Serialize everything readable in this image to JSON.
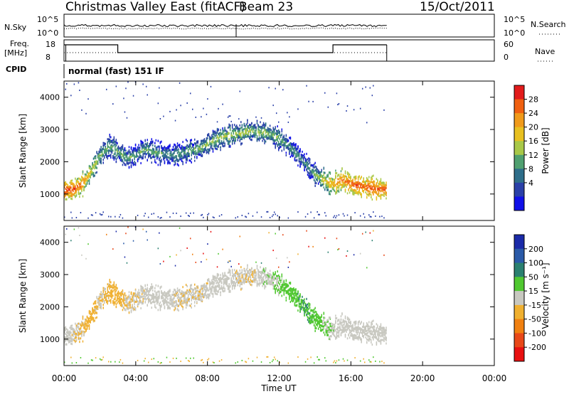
{
  "header": {
    "station": "Christmas Valley East (fitACF)",
    "beam": "Beam 23",
    "date": "15/Oct/2011"
  },
  "summary_labels": {
    "nsky": "N.Sky",
    "freq_line1": "Freq.",
    "freq_line2": "[MHz]",
    "cpid": "CPID",
    "nsearch": "N.Search",
    "nave": "Nave"
  },
  "summary_ticks": {
    "nsky_top": "10^5",
    "nsky_bottom": "10^0",
    "nsearch_top": "10^5",
    "nsearch_bottom": "10^0",
    "freq_top": "18",
    "freq_bottom": "8",
    "nave_top": "60",
    "nave_bottom": "0"
  },
  "mode_text": "normal (fast) 151 IF",
  "colorbars": {
    "power": {
      "label": "Power [dB]",
      "ticks": [
        "28",
        "24",
        "20",
        "16",
        "12",
        "8",
        "4"
      ],
      "colors": [
        "#e21b1b",
        "#f06010",
        "#f09a1a",
        "#e8c020",
        "#a8c848",
        "#50a070",
        "#2e6e8a",
        "#2a40a8",
        "#1010e8"
      ]
    },
    "velocity": {
      "label": "Velocity [m s⁻¹]",
      "ticks": [
        "200",
        "100",
        "50",
        "15",
        "-15",
        "-50",
        "-100",
        "-200"
      ],
      "colors": [
        "#1a2aa8",
        "#2a5aa8",
        "#2a8070",
        "#50c830",
        "#c8c8c0",
        "#f0b030",
        "#f08010",
        "#e84818",
        "#e81010"
      ]
    }
  },
  "axes": {
    "xlabel": "Time UT",
    "ylabel": "Slant Range [km]",
    "xticks": [
      "00:00",
      "04:00",
      "08:00",
      "12:00",
      "16:00",
      "20:00",
      "00:00"
    ],
    "yticks": [
      "1000",
      "2000",
      "3000",
      "4000"
    ]
  },
  "chart_data": [
    {
      "type": "heatmap",
      "panel": "power",
      "x_range_hours": [
        0,
        24
      ],
      "y_range_km": [
        180,
        4500
      ],
      "data_end_hour": 18.0,
      "color_scale_db": [
        0,
        32
      ],
      "echo_bands": [
        {
          "t": [
            0.0,
            0.5,
            1.0,
            1.5,
            2.0,
            2.5,
            3.0,
            3.5,
            4.0,
            4.5,
            5.0,
            5.5,
            6.0,
            6.5,
            7.0,
            7.5,
            8.0,
            8.5,
            9.0,
            9.5,
            10.0,
            10.5,
            11.0,
            11.5,
            12.0,
            12.5,
            13.0,
            13.5,
            14.0,
            14.5,
            15.0,
            15.5,
            16.0,
            16.5,
            17.0,
            17.5,
            18.0
          ],
          "range_km": [
            1100,
            1150,
            1300,
            1700,
            2200,
            2500,
            2300,
            2100,
            2200,
            2400,
            2300,
            2250,
            2200,
            2250,
            2350,
            2400,
            2550,
            2700,
            2800,
            2850,
            2900,
            2950,
            2900,
            2850,
            2700,
            2500,
            2200,
            1900,
            1600,
            1400,
            1300,
            1450,
            1300,
            1250,
            1200,
            1150,
            1150
          ],
          "power_db": [
            29,
            28,
            25,
            20,
            16,
            14,
            15,
            14,
            13,
            14,
            14,
            13,
            12,
            13,
            14,
            15,
            16,
            16,
            17,
            17,
            17,
            16,
            16,
            16,
            15,
            13,
            12,
            12,
            14,
            20,
            24,
            26,
            27,
            28,
            28,
            28,
            28
          ]
        }
      ]
    },
    {
      "type": "heatmap",
      "panel": "velocity",
      "x_range_hours": [
        0,
        24
      ],
      "y_range_km": [
        180,
        4500
      ],
      "data_end_hour": 18.0,
      "color_scale_ms": [
        -200,
        200
      ],
      "echo_bands": [
        {
          "t": [
            0.0,
            0.5,
            1.0,
            1.5,
            2.0,
            2.5,
            3.0,
            3.5,
            4.0,
            4.5,
            5.0,
            5.5,
            6.0,
            6.5,
            7.0,
            7.5,
            8.0,
            8.5,
            9.0,
            9.5,
            10.0,
            10.5,
            11.0,
            11.5,
            12.0,
            12.5,
            13.0,
            13.5,
            14.0,
            14.5,
            15.0,
            15.5,
            16.0,
            16.5,
            17.0,
            17.5,
            18.0
          ],
          "range_km": [
            1100,
            1150,
            1300,
            1700,
            2200,
            2500,
            2300,
            2100,
            2200,
            2400,
            2300,
            2250,
            2200,
            2250,
            2350,
            2400,
            2550,
            2700,
            2800,
            2850,
            2900,
            2950,
            2900,
            2850,
            2700,
            2500,
            2200,
            1900,
            1600,
            1400,
            1300,
            1450,
            1300,
            1250,
            1200,
            1150,
            1150
          ],
          "velocity_ms": [
            0,
            -5,
            -20,
            -30,
            -10,
            -25,
            -30,
            -15,
            -10,
            -5,
            0,
            0,
            -5,
            -10,
            -5,
            -10,
            -5,
            0,
            0,
            -5,
            -10,
            -10,
            5,
            10,
            20,
            30,
            40,
            45,
            40,
            20,
            5,
            0,
            0,
            0,
            0,
            0,
            0
          ]
        }
      ]
    }
  ]
}
